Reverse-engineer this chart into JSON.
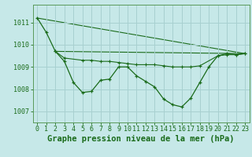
{
  "background_color": "#c6e8e8",
  "grid_color": "#a8d0d0",
  "line_color": "#1a6b1a",
  "marker_color": "#1a6b1a",
  "title": "Graphe pression niveau de la mer (hPa)",
  "xlim": [
    -0.5,
    23.5
  ],
  "ylim": [
    1006.5,
    1011.8
  ],
  "yticks": [
    1007,
    1008,
    1009,
    1010,
    1011
  ],
  "xticks": [
    0,
    1,
    2,
    3,
    4,
    5,
    6,
    7,
    8,
    9,
    10,
    11,
    12,
    13,
    14,
    15,
    16,
    17,
    18,
    19,
    20,
    21,
    22,
    23
  ],
  "series_main": {
    "x": [
      0,
      1,
      2,
      3,
      4,
      5,
      6,
      7,
      8,
      9,
      10,
      11,
      12,
      13,
      14,
      15,
      16,
      17,
      18,
      19,
      20,
      21,
      22,
      23
    ],
    "y": [
      1011.2,
      1010.55,
      1009.7,
      1009.25,
      1008.3,
      1007.85,
      1007.9,
      1008.4,
      1008.45,
      1009.0,
      1009.0,
      1008.6,
      1008.35,
      1008.1,
      1007.55,
      1007.3,
      1007.2,
      1007.6,
      1008.3,
      1009.0,
      1009.5,
      1009.6,
      1009.55,
      1009.6
    ]
  },
  "series_sparse": {
    "x": [
      2,
      3,
      5,
      6,
      7,
      8,
      9,
      10,
      11,
      12,
      13,
      14,
      15,
      16,
      17,
      18,
      20,
      21,
      22,
      23
    ],
    "y": [
      1009.7,
      1009.4,
      1009.3,
      1009.3,
      1009.25,
      1009.25,
      1009.2,
      1009.15,
      1009.1,
      1009.1,
      1009.1,
      1009.05,
      1009.0,
      1009.0,
      1009.0,
      1009.05,
      1009.5,
      1009.55,
      1009.55,
      1009.6
    ]
  },
  "line_diagonal": {
    "x": [
      0,
      23
    ],
    "y": [
      1011.2,
      1009.6
    ]
  },
  "line_flat": {
    "x": [
      2,
      23
    ],
    "y": [
      1009.7,
      1009.6
    ]
  },
  "title_fontsize": 7.5,
  "tick_fontsize": 6,
  "title_color": "#1a6b1a",
  "tick_color": "#1a6b1a",
  "axis_color": "#1a6b1a",
  "spine_color": "#5a9a5a"
}
